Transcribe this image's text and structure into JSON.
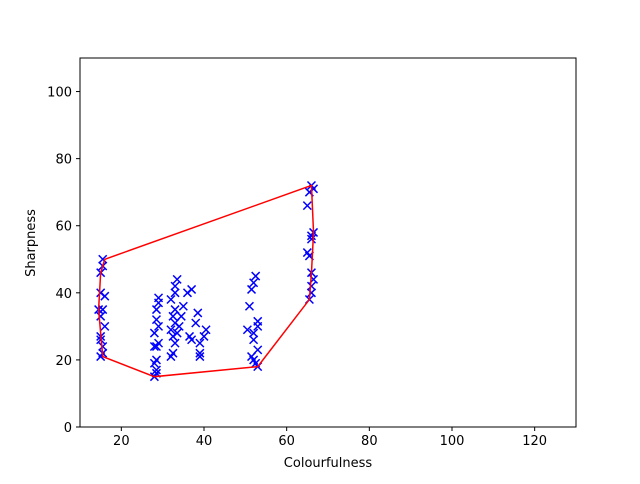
{
  "chart_data": {
    "type": "scatter",
    "xlabel": "Colourfulness",
    "ylabel": "Sharpness",
    "xlim": [
      10,
      130
    ],
    "ylim": [
      0,
      110
    ],
    "xticks": [
      20,
      40,
      60,
      80,
      100,
      120
    ],
    "yticks": [
      0,
      20,
      40,
      60,
      80,
      100
    ],
    "series": [
      {
        "type": "scatter",
        "marker": "x",
        "color": "#0000ff",
        "x": [
          14.5,
          15,
          15,
          15.5,
          15.5,
          15,
          15,
          15.5,
          15.5,
          15.5,
          16,
          16,
          15,
          15,
          28,
          28.5,
          28.5,
          28,
          28.5,
          28,
          29,
          28,
          29,
          28.5,
          28.5,
          29,
          29,
          28.5,
          32,
          32.5,
          33,
          32.5,
          33.5,
          32,
          33,
          32.5,
          33,
          32,
          33,
          33,
          33.5,
          34,
          34.5,
          35,
          36,
          37,
          36.5,
          37,
          38,
          38.5,
          39,
          39,
          40,
          40.5,
          39,
          50.5,
          51,
          51.5,
          52,
          52.5,
          51.5,
          52,
          52.5,
          53,
          52,
          53,
          53,
          52,
          53,
          65,
          65.5,
          66,
          66.5,
          66,
          66,
          66.5,
          65.5,
          65,
          66,
          66.5,
          66,
          66,
          65.5
        ],
        "values": [
          35,
          40,
          46,
          48,
          50,
          27,
          26,
          22,
          24,
          35,
          39,
          30,
          33,
          21,
          15,
          16,
          17,
          19,
          20,
          24,
          25,
          28,
          30,
          32,
          35,
          37,
          38.5,
          24,
          21,
          22,
          25,
          27,
          28,
          29,
          31,
          33,
          35,
          38,
          40,
          42,
          44,
          30,
          33,
          36,
          40,
          41,
          27,
          26,
          31,
          34,
          21,
          22,
          27,
          29,
          25,
          29,
          36,
          41,
          43,
          45,
          21,
          20,
          19,
          18,
          26,
          30,
          31.5,
          28,
          23,
          66,
          70,
          72,
          71,
          57,
          56,
          58,
          51,
          52,
          46,
          44,
          42,
          40,
          38
        ]
      },
      {
        "type": "line",
        "color": "#ff0000",
        "x": [
          16,
          66,
          66.5,
          66,
          65.5,
          53,
          28,
          15.5,
          14.5,
          15,
          16
        ],
        "values": [
          50,
          72,
          58,
          46,
          38,
          18,
          15,
          21,
          35,
          46,
          50
        ]
      }
    ]
  }
}
